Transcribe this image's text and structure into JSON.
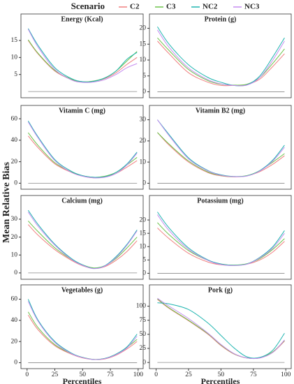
{
  "y_label": "Mean Relative Bias",
  "legend": {
    "title": "Scenario",
    "items": [
      {
        "name": "C2",
        "color": "#f08080"
      },
      {
        "name": "C3",
        "color": "#6cc24a"
      },
      {
        "name": "NC2",
        "color": "#1fb5b0"
      },
      {
        "name": "NC3",
        "color": "#c58cf0"
      }
    ]
  },
  "chart_data": [
    {
      "type": "line",
      "title": "Energy (Kcal)",
      "x": [
        1,
        10,
        25,
        40,
        50,
        60,
        70,
        80,
        90,
        99
      ],
      "xlim": [
        -3,
        102
      ],
      "ylim": [
        -1,
        19.5
      ],
      "yticks": [
        5,
        10,
        15
      ],
      "hline": 0,
      "series": [
        {
          "values": [
            15,
            11,
            6,
            3.5,
            2.8,
            3,
            3.8,
            5.5,
            8,
            10
          ]
        },
        {
          "values": [
            15.2,
            11.2,
            6.2,
            3.6,
            2.9,
            3.1,
            4,
            6,
            9,
            11.8
          ]
        },
        {
          "values": [
            18.5,
            13.5,
            7,
            3.8,
            2.9,
            3,
            4,
            6,
            9.5,
            11.5
          ]
        },
        {
          "values": [
            18.3,
            13,
            6.5,
            3.4,
            2.7,
            2.8,
            3.5,
            5,
            7,
            8.2
          ]
        }
      ]
    },
    {
      "type": "line",
      "title": "Protein (g)",
      "x": [
        1,
        10,
        25,
        40,
        50,
        60,
        70,
        80,
        90,
        99
      ],
      "xlim": [
        -3,
        102
      ],
      "ylim": [
        -1,
        21
      ],
      "yticks": [
        0,
        5,
        10,
        15,
        20
      ],
      "hline": 0,
      "series": [
        {
          "values": [
            16,
            12,
            6,
            3,
            2,
            2,
            2.3,
            4,
            8,
            12
          ]
        },
        {
          "values": [
            17,
            13,
            7,
            3.5,
            2.4,
            2.1,
            2.4,
            4.5,
            9,
            13.5
          ]
        },
        {
          "values": [
            20.5,
            15,
            8.5,
            4.5,
            3,
            2,
            2.2,
            5,
            11,
            17
          ]
        },
        {
          "values": [
            19.5,
            14,
            7.5,
            3.8,
            2.5,
            2,
            2.1,
            4.5,
            10,
            16
          ]
        }
      ]
    },
    {
      "type": "line",
      "title": "Vitamin C (mg)",
      "x": [
        1,
        10,
        25,
        40,
        50,
        60,
        70,
        80,
        90,
        99
      ],
      "xlim": [
        -3,
        102
      ],
      "ylim": [
        -3,
        62
      ],
      "yticks": [
        0,
        20,
        40,
        60
      ],
      "hline": 0,
      "series": [
        {
          "values": [
            44,
            33,
            18,
            10,
            6.5,
            5,
            6,
            9,
            15,
            21
          ]
        },
        {
          "values": [
            47,
            35,
            19,
            10.5,
            7,
            5.5,
            6.5,
            10,
            17,
            24
          ]
        },
        {
          "values": [
            58,
            43,
            22,
            11,
            7,
            5.5,
            6,
            10,
            18,
            29
          ]
        },
        {
          "values": [
            57,
            42,
            21,
            10,
            6.5,
            5,
            5.5,
            9,
            17,
            28
          ]
        }
      ]
    },
    {
      "type": "line",
      "title": "Vitamin B2 (mg)",
      "x": [
        1,
        10,
        25,
        40,
        50,
        60,
        70,
        80,
        90,
        99
      ],
      "xlim": [
        -3,
        102
      ],
      "ylim": [
        -1.5,
        31.5
      ],
      "yticks": [
        0,
        10,
        20,
        30
      ],
      "hline": 0,
      "series": [
        {
          "values": [
            24,
            18,
            10,
            5,
            3.5,
            3,
            3.5,
            5.5,
            9,
            13
          ]
        },
        {
          "values": [
            24,
            18.5,
            10.5,
            5.3,
            3.7,
            3.1,
            3.6,
            6,
            10,
            14
          ]
        },
        {
          "values": [
            30,
            23,
            12,
            6,
            4,
            3.2,
            3.5,
            6,
            11,
            18
          ]
        },
        {
          "values": [
            30,
            22.5,
            11.5,
            5.8,
            3.8,
            3.1,
            3.4,
            5.8,
            10.5,
            17
          ]
        }
      ]
    },
    {
      "type": "line",
      "title": "Calcium (mg)",
      "x": [
        1,
        10,
        25,
        40,
        50,
        60,
        70,
        80,
        90,
        99
      ],
      "xlim": [
        -3,
        102
      ],
      "ylim": [
        -2,
        37
      ],
      "yticks": [
        0,
        10,
        20,
        30
      ],
      "hline": 0,
      "series": [
        {
          "values": [
            27,
            21,
            13,
            7,
            4,
            2.5,
            3.5,
            7,
            12,
            18
          ]
        },
        {
          "values": [
            29,
            23,
            14,
            7.5,
            4.5,
            2.8,
            4,
            8,
            14,
            20
          ]
        },
        {
          "values": [
            35,
            27,
            16,
            8,
            4.5,
            2.5,
            4,
            9,
            16,
            24
          ]
        },
        {
          "values": [
            34,
            26,
            15.5,
            7.5,
            4.2,
            2.4,
            3.8,
            8.5,
            15.5,
            23.5
          ]
        }
      ]
    },
    {
      "type": "line",
      "title": "Potassium (mg)",
      "x": [
        1,
        10,
        25,
        40,
        50,
        60,
        70,
        80,
        90,
        99
      ],
      "xlim": [
        -3,
        102
      ],
      "ylim": [
        -1.2,
        25
      ],
      "yticks": [
        0,
        5,
        10,
        15,
        20
      ],
      "hline": 0,
      "series": [
        {
          "values": [
            17,
            13,
            7.5,
            4.2,
            3.2,
            3,
            3.4,
            5,
            8,
            12
          ]
        },
        {
          "values": [
            19,
            14.5,
            8.5,
            4.8,
            3.5,
            3.1,
            3.6,
            5.5,
            9,
            13
          ]
        },
        {
          "values": [
            23,
            17,
            9.5,
            5,
            3.5,
            3,
            3.5,
            6,
            10,
            16
          ]
        },
        {
          "values": [
            22,
            16,
            9,
            4.8,
            3.3,
            2.9,
            3.4,
            5.8,
            9.5,
            15
          ]
        }
      ]
    },
    {
      "type": "line",
      "title": "Vegetables (g)",
      "x_label": "Percentiles",
      "x": [
        1,
        10,
        25,
        40,
        50,
        60,
        70,
        80,
        90,
        99
      ],
      "xlim": [
        -3,
        102
      ],
      "xticks": [
        0,
        25,
        50,
        75,
        100
      ],
      "ylim": [
        -3,
        63
      ],
      "yticks": [
        0,
        20,
        40,
        60
      ],
      "hline": 0,
      "series": [
        {
          "values": [
            45,
            31,
            16,
            8,
            4.5,
            3,
            3.5,
            7,
            13,
            20
          ]
        },
        {
          "values": [
            48,
            33,
            17,
            8.5,
            5,
            3.2,
            4,
            8,
            14.5,
            22
          ]
        },
        {
          "values": [
            60,
            40,
            20,
            9,
            5,
            3,
            4,
            8,
            15,
            27
          ]
        },
        {
          "values": [
            58,
            39,
            19,
            8.5,
            4.8,
            3,
            3.8,
            7.5,
            14,
            25
          ]
        }
      ]
    },
    {
      "type": "line",
      "title": "Pork (g)",
      "x_label": "Percentiles",
      "x": [
        1,
        10,
        25,
        40,
        50,
        60,
        70,
        80,
        90,
        99
      ],
      "xlim": [
        -3,
        102
      ],
      "xticks": [
        0,
        25,
        50,
        75,
        100
      ],
      "ylim": [
        -6,
        118
      ],
      "yticks": [
        0,
        25,
        50,
        75,
        100
      ],
      "hline": 0,
      "series": [
        {
          "values": [
            112,
            96,
            74,
            50,
            30,
            15,
            8,
            8,
            18,
            38
          ]
        },
        {
          "values": [
            113,
            97,
            75,
            51,
            31,
            15.5,
            8,
            8.5,
            19,
            39
          ]
        },
        {
          "values": [
            106,
            104,
            94,
            70,
            48,
            26,
            10,
            9,
            22,
            52
          ]
        },
        {
          "values": [
            114,
            100,
            78,
            52,
            32,
            16,
            8,
            8,
            18,
            40
          ]
        }
      ]
    }
  ]
}
